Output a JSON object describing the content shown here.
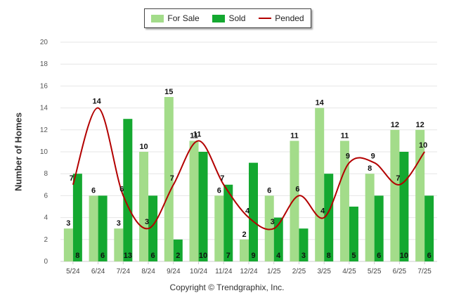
{
  "legend": {
    "for_sale": "For Sale",
    "sold": "Sold",
    "pended": "Pended"
  },
  "colors": {
    "for_sale": "#a3dc8a",
    "sold": "#14a830",
    "pended": "#b30000"
  },
  "copyright": "Copyright © Trendgraphix, Inc.",
  "chart_data": {
    "type": "bar",
    "ylabel": "Number of Homes",
    "xlabel": "",
    "ylim": [
      0,
      20
    ],
    "yticks": [
      0,
      2,
      4,
      6,
      8,
      10,
      12,
      14,
      16,
      18,
      20
    ],
    "grid": true,
    "legend_position": "top",
    "categories": [
      "5/24",
      "6/24",
      "7/24",
      "8/24",
      "9/24",
      "10/24",
      "11/24",
      "12/24",
      "1/25",
      "2/25",
      "3/25",
      "4/25",
      "5/25",
      "6/25",
      "7/25"
    ],
    "series": [
      {
        "name": "For Sale",
        "type": "bar",
        "values": [
          3,
          6,
          3,
          10,
          15,
          11,
          6,
          2,
          6,
          11,
          14,
          11,
          8,
          12,
          12
        ]
      },
      {
        "name": "Sold",
        "type": "bar",
        "values": [
          8,
          6,
          13,
          6,
          2,
          10,
          7,
          9,
          4,
          3,
          8,
          5,
          6,
          10,
          6
        ]
      },
      {
        "name": "Pended",
        "type": "line",
        "values": [
          7,
          14,
          6,
          3,
          7,
          11,
          7,
          4,
          3,
          6,
          4,
          9,
          9,
          7,
          10
        ]
      }
    ]
  }
}
